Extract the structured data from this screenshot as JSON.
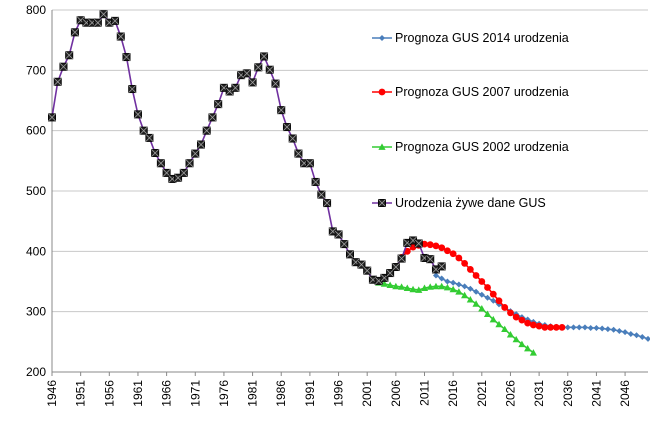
{
  "chart_data": {
    "type": "line",
    "title": "",
    "xlabel": "",
    "ylabel": "",
    "xlim": [
      1946,
      2050
    ],
    "ylim": [
      200,
      800
    ],
    "y_ticks": [
      200,
      300,
      400,
      500,
      600,
      700,
      800
    ],
    "x_ticks": [
      1946,
      1951,
      1956,
      1961,
      1966,
      1971,
      1976,
      1981,
      1986,
      1991,
      1996,
      2001,
      2006,
      2011,
      2016,
      2021,
      2026,
      2031,
      2036,
      2041,
      2046
    ],
    "grid": "horizontal",
    "legend_position": "right",
    "series": [
      {
        "name": "Prognoza GUS 2014 urodzenia",
        "color": "#4a7ebb",
        "marker": "diamond",
        "x": [
          2013,
          2014,
          2015,
          2016,
          2017,
          2018,
          2019,
          2020,
          2021,
          2022,
          2023,
          2024,
          2025,
          2026,
          2027,
          2028,
          2029,
          2030,
          2031,
          2032,
          2033,
          2034,
          2035,
          2036,
          2037,
          2038,
          2039,
          2040,
          2041,
          2042,
          2043,
          2044,
          2045,
          2046,
          2047,
          2048,
          2049,
          2050
        ],
        "values": [
          360,
          355,
          350,
          348,
          345,
          342,
          338,
          333,
          328,
          323,
          318,
          312,
          307,
          301,
          296,
          291,
          287,
          283,
          280,
          278,
          276,
          275,
          274,
          274,
          274,
          274,
          274,
          273,
          273,
          272,
          271,
          270,
          268,
          266,
          263,
          261,
          258,
          255
        ]
      },
      {
        "name": "Prognoza GUS 2007 urodzenia",
        "color": "#ff0000",
        "marker": "circle",
        "x": [
          2007,
          2008,
          2009,
          2010,
          2011,
          2012,
          2013,
          2014,
          2015,
          2016,
          2017,
          2018,
          2019,
          2020,
          2021,
          2022,
          2023,
          2024,
          2025,
          2026,
          2027,
          2028,
          2029,
          2030,
          2031,
          2032,
          2033,
          2034,
          2035
        ],
        "values": [
          390,
          400,
          407,
          410,
          412,
          411,
          409,
          406,
          401,
          396,
          389,
          380,
          370,
          360,
          350,
          340,
          329,
          318,
          307,
          298,
          291,
          286,
          281,
          278,
          276,
          274,
          274,
          274,
          274
        ]
      },
      {
        "name": "Prognoza GUS 2002 urodzenia",
        "color": "#33cc33",
        "marker": "triangle",
        "x": [
          2003,
          2004,
          2005,
          2006,
          2007,
          2008,
          2009,
          2010,
          2011,
          2012,
          2013,
          2014,
          2015,
          2016,
          2017,
          2018,
          2019,
          2020,
          2021,
          2022,
          2023,
          2024,
          2025,
          2026,
          2027,
          2028,
          2029,
          2030
        ],
        "values": [
          348,
          346,
          344,
          342,
          341,
          339,
          337,
          336,
          339,
          341,
          342,
          342,
          340,
          337,
          333,
          327,
          320,
          313,
          305,
          296,
          287,
          279,
          271,
          262,
          254,
          246,
          239,
          232
        ]
      },
      {
        "name": "Urodzenia żywe dane GUS",
        "color": "#7030a0",
        "marker": "square",
        "x": [
          1946,
          1947,
          1948,
          1949,
          1950,
          1951,
          1952,
          1953,
          1954,
          1955,
          1956,
          1957,
          1958,
          1959,
          1960,
          1961,
          1962,
          1963,
          1964,
          1965,
          1966,
          1967,
          1968,
          1969,
          1970,
          1971,
          1972,
          1973,
          1974,
          1975,
          1976,
          1977,
          1978,
          1979,
          1980,
          1981,
          1982,
          1983,
          1984,
          1985,
          1986,
          1987,
          1988,
          1989,
          1990,
          1991,
          1992,
          1993,
          1994,
          1995,
          1996,
          1997,
          1998,
          1999,
          2000,
          2001,
          2002,
          2003,
          2004,
          2005,
          2006,
          2007,
          2008,
          2009,
          2010,
          2011,
          2012,
          2013,
          2014
        ],
        "values": [
          622,
          681,
          706,
          725,
          763,
          783,
          779,
          779,
          779,
          793,
          779,
          782,
          756,
          722,
          669,
          627,
          600,
          588,
          563,
          546,
          530,
          520,
          522,
          530,
          546,
          562,
          577,
          600,
          622,
          644,
          671,
          665,
          671,
          692,
          695,
          680,
          705,
          723,
          701,
          678,
          634,
          606,
          587,
          562,
          546,
          546,
          515,
          494,
          480,
          433,
          428,
          412,
          395,
          382,
          378,
          368,
          353,
          351,
          356,
          364,
          374,
          388,
          414,
          418,
          413,
          389,
          387,
          370,
          375
        ]
      }
    ]
  }
}
